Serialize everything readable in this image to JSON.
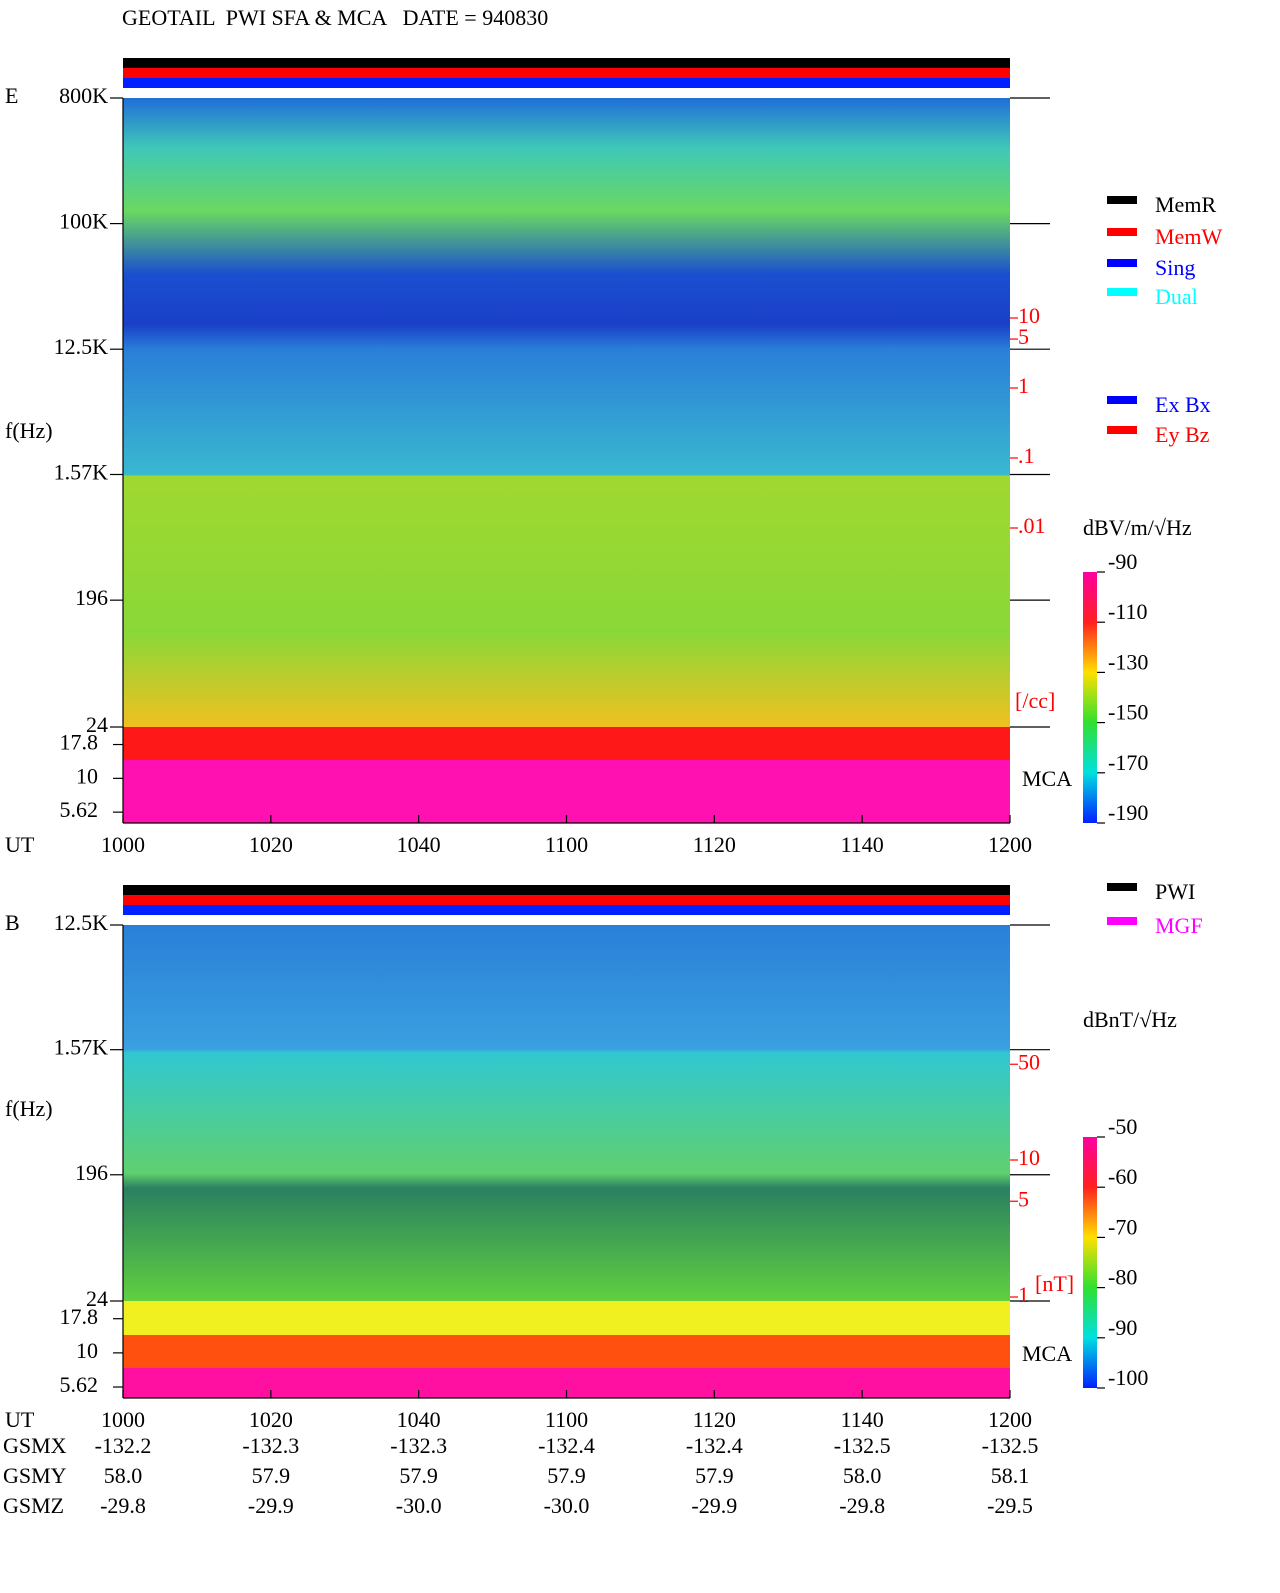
{
  "title": "GEOTAIL  PWI SFA & MCA   DATE = 940830",
  "chart_data": [
    {
      "type": "spectrogram",
      "panel_label": "E",
      "xlabel": "UT",
      "ylabel": "f(Hz)",
      "log_scale": true,
      "xticks": [
        "1000",
        "1020",
        "1040",
        "1100",
        "1120",
        "1140",
        "1200"
      ],
      "ylim": [
        24,
        800000
      ],
      "yticks": [
        {
          "value": 800000,
          "label": "800K"
        },
        {
          "value": 100000,
          "label": "100K"
        },
        {
          "value": 12500,
          "label": "12.5K"
        },
        {
          "value": 1570,
          "label": "1.57K"
        },
        196,
        24
      ],
      "mca_label": "MCA",
      "mca_ylim": [
        4.67,
        24
      ],
      "mca_yticks": [
        17.8,
        10,
        5.62
      ],
      "y2label": "[/cc]",
      "y2lim": [
        0.001,
        100
      ],
      "y2ticks": [
        10,
        5,
        1,
        {
          "value": 0.1,
          "label": ".1"
        },
        {
          "value": 0.01,
          "label": ".01"
        }
      ],
      "colorbar": {
        "label": "dBV/m/√Hz",
        "lim": [
          -190,
          -90
        ],
        "ticks": [
          -90,
          -110,
          -130,
          -150,
          -170,
          -190
        ]
      },
      "legend": [
        {
          "name": "MemR",
          "color": "#000000"
        },
        {
          "name": "MemW",
          "color": "#ff0000"
        },
        {
          "name": "Sing",
          "color": "#0000ff"
        },
        {
          "name": "Dual",
          "color": "#00ffff"
        }
      ],
      "legend2": [
        {
          "name": "Ex Bx",
          "color": "#0000ff"
        },
        {
          "name": "Ey Bz",
          "color": "#ff0000"
        }
      ]
    },
    {
      "type": "spectrogram",
      "panel_label": "B",
      "xlabel": "UT",
      "ylabel": "f(Hz)",
      "log_scale": true,
      "xticks": [
        "1000",
        "1020",
        "1040",
        "1100",
        "1120",
        "1140",
        "1200"
      ],
      "ylim": [
        24,
        12500
      ],
      "yticks": [
        {
          "value": 12500,
          "label": "12.5K"
        },
        {
          "value": 1570,
          "label": "1.57K"
        },
        196,
        24
      ],
      "mca_label": "MCA",
      "mca_ylim": [
        4.67,
        24
      ],
      "mca_yticks": [
        17.8,
        10,
        5.62
      ],
      "y2label": "[nT]",
      "y2lim": [
        1,
        100
      ],
      "y2ticks": [
        50,
        10,
        5,
        1
      ],
      "colorbar": {
        "label": "dBnT/√Hz",
        "lim": [
          -100,
          -50
        ],
        "ticks": [
          -50,
          -60,
          -70,
          -80,
          -90,
          -100
        ]
      },
      "legend": [
        {
          "name": "PWI",
          "color": "#000000"
        },
        {
          "name": "MGF",
          "color": "#ff00ff"
        }
      ]
    }
  ],
  "orbit": {
    "rows": [
      {
        "name": "GSMX",
        "values": [
          "-132.2",
          "-132.3",
          "-132.3",
          "-132.4",
          "-132.4",
          "-132.5",
          "-132.5"
        ]
      },
      {
        "name": "GSMY",
        "values": [
          "58.0",
          "57.9",
          "57.9",
          "57.9",
          "57.9",
          "58.0",
          "58.1"
        ]
      },
      {
        "name": "GSMZ",
        "values": [
          "-29.8",
          "-29.9",
          "-30.0",
          "-30.0",
          "-29.9",
          "-29.8",
          "-29.5"
        ]
      }
    ]
  }
}
